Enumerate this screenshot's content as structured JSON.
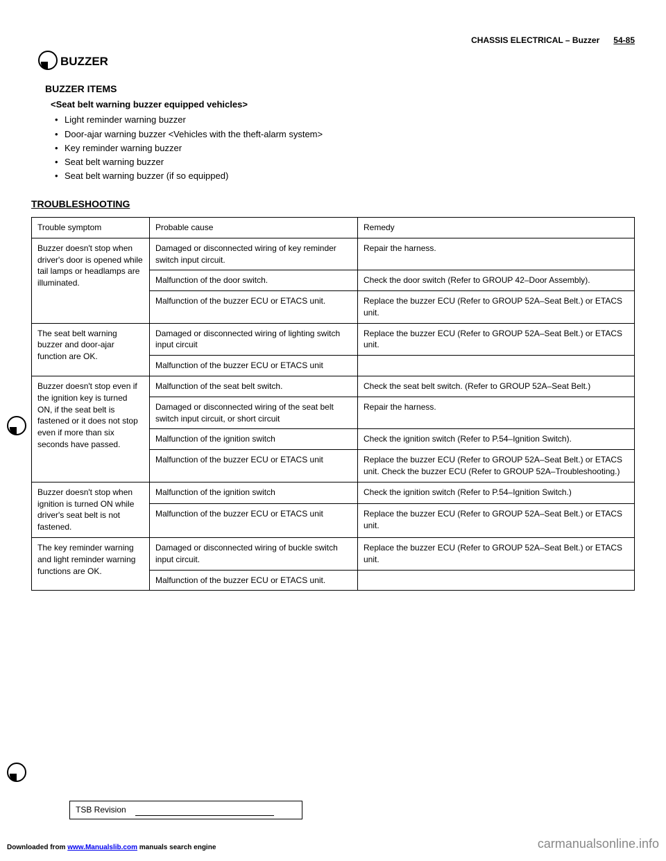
{
  "header": {
    "chapter": "CHASSIS ELECTRICAL",
    "section": "– Buzzer",
    "page": "54-85"
  },
  "main_title": "BUZZER",
  "subsections": {
    "buzzer_items": {
      "title": "BUZZER ITEMS",
      "seat_variant": "<Seat belt warning buzzer equipped vehicles>",
      "items": [
        "Light reminder warning buzzer",
        "Door-ajar warning buzzer <Vehicles with the theft-alarm system>",
        "Key reminder warning buzzer",
        "Seat belt warning buzzer",
        "Seat belt warning buzzer (if so equipped)"
      ]
    }
  },
  "troubleshooting": {
    "title": "TROUBLESHOOTING",
    "table": {
      "headers": [
        "Trouble symptom",
        "Probable cause",
        "Remedy"
      ],
      "rows": [
        {
          "symptom": "Buzzer doesn't stop when driver's door is opened while tail lamps or headlamps are illuminated.",
          "cause": "Damaged or disconnected wiring of key reminder switch input circuit.",
          "remedy": "Repair the harness."
        },
        {
          "symptom": "",
          "cause": "Malfunction of the door switch.",
          "remedy": "Check the door switch (Refer to GROUP 42–Door Assembly)."
        },
        {
          "symptom": "",
          "cause": "Malfunction of the buzzer ECU or ETACS unit.",
          "remedy": "Replace the buzzer ECU (Refer to GROUP 52A–Seat Belt.) or ETACS unit."
        },
        {
          "symptom": "The seat belt warning buzzer and door-ajar function are OK.",
          "cause": "Damaged or disconnected wiring of lighting switch input circuit",
          "remedy": "Replace the buzzer ECU (Refer to GROUP 52A–Seat Belt.) or ETACS unit."
        },
        {
          "symptom": "",
          "cause": "Malfunction of the buzzer ECU or ETACS unit",
          "remedy": ""
        },
        {
          "symptom": "Buzzer doesn't stop even if the ignition key is turned ON, if the seat belt is fastened or it does not stop even if more than six seconds have passed.",
          "cause": "Malfunction of the seat belt switch.",
          "remedy": "Check the seat belt switch. (Refer to GROUP 52A–Seat Belt.)"
        },
        {
          "symptom": "",
          "cause": "Damaged or disconnected wiring of the seat belt switch input circuit, or short circuit",
          "remedy": "Repair the harness."
        },
        {
          "symptom": "",
          "cause": "Malfunction of the ignition switch",
          "remedy": "Check the ignition switch (Refer to P.54–Ignition Switch)."
        },
        {
          "symptom": "",
          "cause": "Malfunction of the buzzer ECU or ETACS unit",
          "remedy": "Replace the buzzer ECU (Refer to GROUP 52A–Seat Belt.) or ETACS unit. Check the buzzer ECU (Refer to GROUP 52A–Troubleshooting.)"
        },
        {
          "symptom": "Buzzer doesn't stop when ignition is turned ON while driver's seat belt is not fastened.",
          "cause": "Malfunction of the ignition switch",
          "remedy": "Check the ignition switch (Refer to P.54–Ignition Switch.)"
        },
        {
          "symptom": "",
          "cause": "Malfunction of the buzzer ECU or ETACS unit",
          "remedy": "Replace the buzzer ECU (Refer to GROUP 52A–Seat Belt.) or ETACS unit."
        },
        {
          "symptom": "The key reminder warning and light reminder warning functions are OK.",
          "cause": "Damaged or disconnected wiring of buckle switch input circuit.",
          "remedy": "Replace the buzzer ECU (Refer to GROUP 52A–Seat Belt.) or ETACS unit."
        },
        {
          "symptom": "",
          "cause": "Malfunction of the buzzer ECU or ETACS unit.",
          "remedy": ""
        }
      ]
    }
  },
  "footer": {
    "download_prefix": "Downloaded from ",
    "download_link": "www.Manualslib.com",
    "download_suffix": " manuals search engine",
    "tsb_text": "TSB Revision",
    "watermark": "carmanualsonline.info"
  }
}
